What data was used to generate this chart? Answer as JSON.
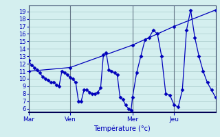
{
  "xlabel": "Température (°c)",
  "bg_color": "#d4efef",
  "line_color": "#0000bb",
  "grid_color": "#aacccc",
  "sep_color": "#667788",
  "ylim": [
    5.5,
    19.8
  ],
  "yticks": [
    6,
    7,
    8,
    9,
    10,
    11,
    12,
    13,
    14,
    15,
    16,
    17,
    18,
    19
  ],
  "day_labels": [
    "Mar",
    "Ven",
    "Mer",
    "Jeu"
  ],
  "day_positions": [
    0,
    30,
    75,
    105
  ],
  "total_steps": 135,
  "series1_x": [
    0,
    2,
    4,
    6,
    8,
    10,
    12,
    14,
    16,
    18,
    20,
    22,
    24,
    26,
    28,
    30,
    32,
    34,
    36,
    38,
    40,
    42,
    44,
    46,
    48,
    50,
    52,
    54,
    56,
    58,
    60,
    62,
    64,
    66,
    68,
    70,
    72,
    74,
    75,
    78,
    81,
    84,
    87,
    90,
    93,
    96,
    99,
    102,
    105,
    108,
    111,
    114,
    117,
    120,
    123,
    126,
    129,
    132,
    135
  ],
  "series1_y": [
    12.5,
    11.8,
    11.5,
    11.2,
    10.8,
    10.3,
    10.0,
    9.8,
    9.5,
    9.5,
    9.2,
    9.0,
    11.0,
    10.8,
    10.5,
    10.2,
    10.0,
    9.5,
    7.0,
    7.0,
    8.5,
    8.5,
    8.2,
    8.0,
    8.0,
    8.2,
    8.8,
    13.2,
    13.5,
    11.2,
    11.0,
    10.8,
    10.5,
    7.5,
    7.2,
    6.5,
    6.0,
    5.8,
    7.5,
    10.8,
    13.0,
    15.2,
    15.5,
    16.5,
    16.0,
    13.0,
    8.0,
    7.8,
    6.5,
    6.2,
    8.5,
    16.5,
    19.2,
    15.5,
    13.0,
    11.0,
    9.5,
    8.5,
    7.5
  ],
  "series2_x": [
    0,
    30,
    75,
    105,
    135
  ],
  "series2_y": [
    11.0,
    11.5,
    14.5,
    17.0,
    19.2
  ],
  "marker": "D",
  "marker_size": 2.5
}
